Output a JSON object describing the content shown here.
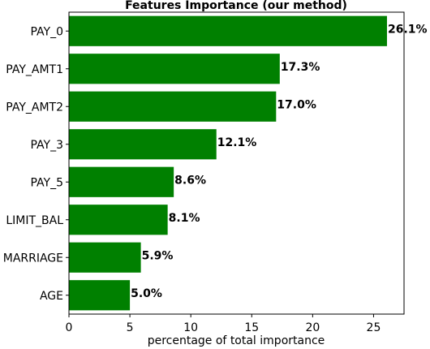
{
  "chart_data": {
    "type": "bar",
    "orientation": "horizontal",
    "title": "Features Importance (our method)",
    "xlabel": "percentage of total importance",
    "ylabel": "",
    "xlim": [
      0,
      27.5
    ],
    "xticks": [
      0,
      5,
      10,
      15,
      20,
      25
    ],
    "categories": [
      "PAY_0",
      "PAY_AMT1",
      "PAY_AMT2",
      "PAY_3",
      "PAY_5",
      "LIMIT_BAL",
      "MARRIAGE",
      "AGE"
    ],
    "values": [
      26.1,
      17.3,
      17.0,
      12.1,
      8.6,
      8.1,
      5.9,
      5.0
    ],
    "value_labels": [
      "26.1%",
      "17.3%",
      "17.0%",
      "12.1%",
      "8.6%",
      "8.1%",
      "5.9%",
      "5.0%"
    ],
    "bar_color": "#008000",
    "grid": false,
    "legend": "none"
  }
}
